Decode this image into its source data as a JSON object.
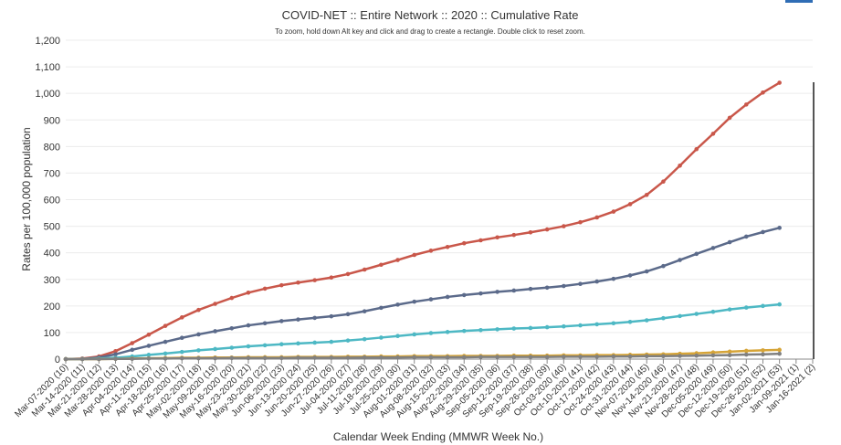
{
  "chart_data": {
    "type": "line",
    "title": "COVID-NET :: Entire Network :: 2020 :: Cumulative Rate",
    "subtitle": "To zoom, hold down Alt key and click and drag to create a rectangle. Double click to reset zoom.",
    "y_label": "Rates per 100,000 population",
    "x_label": "Calendar Week Ending (MMWR Week No.)",
    "categories": [
      "Mar-07-2020 (10)",
      "Mar-14-2020 (11)",
      "Mar-21-2020 (12)",
      "Mar-28-2020 (13)",
      "Apr-04-2020 (14)",
      "Apr-11-2020 (15)",
      "Apr-18-2020 (16)",
      "Apr-25-2020 (17)",
      "May-02-2020 (18)",
      "May-09-2020 (19)",
      "May-16-2020 (20)",
      "May-23-2020 (21)",
      "May-30-2020 (22)",
      "Jun-06-2020 (23)",
      "Jun-13-2020 (24)",
      "Jun-20-2020 (25)",
      "Jun-27-2020 (26)",
      "Jul-04-2020 (27)",
      "Jul-11-2020 (28)",
      "Jul-18-2020 (29)",
      "Jul-25-2020 (30)",
      "Aug-01-2020 (31)",
      "Aug-08-2020 (32)",
      "Aug-15-2020 (33)",
      "Aug-22-2020 (34)",
      "Aug-29-2020 (35)",
      "Sep-05-2020 (36)",
      "Sep-12-2020 (37)",
      "Sep-19-2020 (38)",
      "Sep-26-2020 (39)",
      "Oct-03-2020 (40)",
      "Oct-10-2020 (41)",
      "Oct-17-2020 (42)",
      "Oct-24-2020 (43)",
      "Oct-31-2020 (44)",
      "Nov-07-2020 (45)",
      "Nov-14-2020 (46)",
      "Nov-21-2020 (47)",
      "Nov-28-2020 (48)",
      "Dec-05-2020 (49)",
      "Dec-12-2020 (50)",
      "Dec-19-2020 (51)",
      "Dec-26-2020 (52)",
      "Jan-02-2021 (53)",
      "Jan-09-2021 (1)",
      "Jan-16-2021 (2)"
    ],
    "series": [
      {
        "color": "#c9574a",
        "values": [
          0,
          2,
          10,
          30,
          60,
          92,
          125,
          157,
          185,
          208,
          230,
          250,
          265,
          278,
          288,
          297,
          307,
          320,
          337,
          355,
          373,
          392,
          408,
          422,
          436,
          447,
          458,
          467,
          477,
          488,
          500,
          515,
          533,
          555,
          583,
          618,
          668,
          728,
          790,
          848,
          908,
          958,
          1003,
          1040,
          null,
          null
        ]
      },
      {
        "color": "#5b6a8a",
        "values": [
          0,
          1,
          6,
          18,
          35,
          50,
          65,
          80,
          93,
          105,
          116,
          127,
          135,
          143,
          149,
          155,
          161,
          169,
          180,
          193,
          205,
          216,
          225,
          234,
          241,
          247,
          253,
          258,
          264,
          269,
          275,
          283,
          292,
          302,
          315,
          330,
          350,
          373,
          396,
          418,
          440,
          461,
          478,
          494,
          null,
          null
        ]
      },
      {
        "color": "#4db8c4",
        "values": [
          0,
          0,
          2,
          5,
          10,
          16,
          21,
          27,
          33,
          38,
          43,
          48,
          52,
          56,
          59,
          62,
          65,
          70,
          75,
          81,
          87,
          93,
          98,
          102,
          106,
          109,
          112,
          115,
          117,
          120,
          123,
          127,
          131,
          135,
          140,
          146,
          154,
          162,
          170,
          178,
          187,
          194,
          200,
          206,
          null,
          null
        ]
      },
      {
        "color": "#d6a437",
        "values": [
          0,
          0,
          0,
          1,
          2,
          3,
          4,
          5,
          5,
          6,
          6,
          7,
          7,
          7,
          8,
          8,
          8,
          9,
          9,
          10,
          10,
          11,
          11,
          11,
          12,
          12,
          12,
          13,
          13,
          13,
          14,
          14,
          15,
          15,
          16,
          17,
          18,
          20,
          22,
          25,
          28,
          31,
          33,
          35,
          null,
          null
        ]
      },
      {
        "color": "#808080",
        "values": [
          0,
          0,
          0,
          1,
          1,
          2,
          2,
          3,
          3,
          3,
          4,
          4,
          4,
          4,
          5,
          5,
          5,
          5,
          6,
          6,
          6,
          7,
          7,
          7,
          7,
          8,
          8,
          8,
          8,
          8,
          9,
          9,
          9,
          10,
          10,
          11,
          11,
          12,
          13,
          14,
          15,
          17,
          18,
          20,
          null,
          null
        ]
      }
    ],
    "ylim": [
      0,
      1200
    ],
    "yticks": [
      0,
      100,
      200,
      300,
      400,
      500,
      600,
      700,
      800,
      900,
      {
        "value": 1000,
        "label": "1,000"
      },
      {
        "value": 1100,
        "label": "1,100"
      },
      {
        "value": 1200,
        "label": "1,200"
      }
    ],
    "grid": true
  }
}
